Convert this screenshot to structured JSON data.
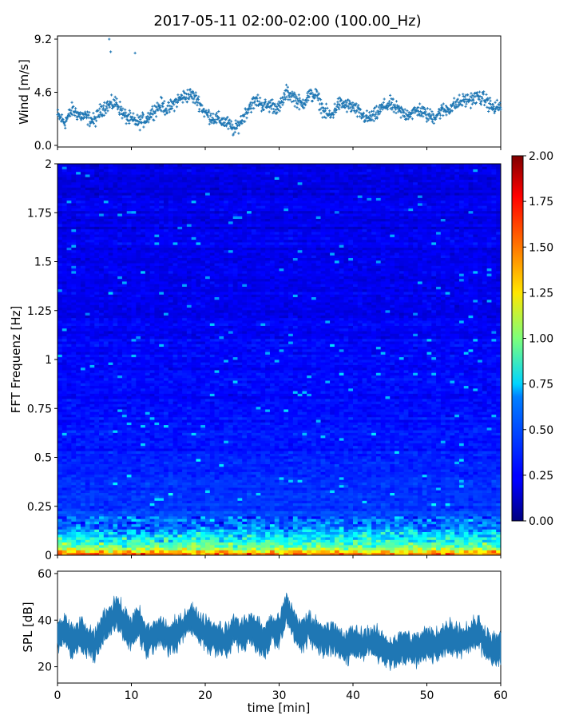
{
  "title": "2017-05-11 02:00-02:00 (100.00_Hz)",
  "chart_data": [
    {
      "type": "scatter",
      "panel": "wind",
      "ylabel": "Wind [m/s]",
      "xlim": [
        0,
        60
      ],
      "ylim": [
        0,
        9.2
      ],
      "yticks": [
        "0.0",
        "4.6",
        "9.2"
      ],
      "marker": "plus",
      "color": "#1f77b4",
      "x": [
        0,
        1,
        2,
        3,
        4,
        5,
        6,
        7,
        8,
        9,
        10,
        11,
        12,
        13,
        14,
        15,
        16,
        17,
        18,
        19,
        20,
        21,
        22,
        23,
        24,
        25,
        26,
        27,
        28,
        29,
        30,
        31,
        32,
        33,
        34,
        35,
        36,
        37,
        38,
        39,
        40,
        41,
        42,
        43,
        44,
        45,
        46,
        47,
        48,
        49,
        50,
        51,
        52,
        53,
        54,
        55,
        56,
        57,
        58,
        59,
        60
      ],
      "y": [
        2.6,
        2.0,
        3.1,
        2.6,
        2.4,
        2.1,
        3.2,
        3.5,
        3.7,
        2.6,
        2.2,
        2.0,
        2.3,
        3.0,
        3.5,
        3.1,
        3.8,
        4.2,
        4.4,
        3.9,
        2.8,
        2.4,
        2.2,
        1.9,
        1.3,
        2.3,
        3.4,
        3.9,
        3.4,
        3.5,
        3.2,
        4.6,
        4.2,
        3.5,
        4.3,
        4.4,
        3.0,
        2.5,
        3.6,
        3.5,
        3.3,
        2.7,
        2.3,
        2.6,
        3.3,
        3.6,
        3.1,
        2.7,
        2.8,
        3.1,
        2.6,
        2.5,
        3.0,
        3.2,
        3.6,
        3.9,
        4.0,
        4.2,
        3.9,
        3.2,
        3.4
      ],
      "outliers": [
        {
          "x": 7.0,
          "y": 9.2
        },
        {
          "x": 7.2,
          "y": 8.1
        },
        {
          "x": 10.5,
          "y": 8.0
        }
      ]
    },
    {
      "type": "heatmap",
      "panel": "spectrogram",
      "ylabel": "FFT Frequenz [Hz]",
      "xlim": [
        0,
        60
      ],
      "ylim": [
        0,
        2
      ],
      "yticks": [
        "0",
        "0.25",
        "0.5",
        "0.75",
        "1",
        "1.25",
        "1.5",
        "1.75",
        "2"
      ],
      "colormap": "jet",
      "colorbar": {
        "min": 0.0,
        "max": 2.0,
        "ticks": [
          "0.00",
          "0.25",
          "0.50",
          "0.75",
          "1.00",
          "1.25",
          "1.50",
          "1.75",
          "2.00"
        ]
      },
      "description_levels": {
        "freq_hz": [
          0.0,
          0.02,
          0.05,
          0.1,
          0.15,
          0.25,
          0.5,
          1.0,
          1.5,
          2.0
        ],
        "typical_value": [
          1.6,
          1.3,
          0.9,
          0.7,
          0.5,
          0.35,
          0.3,
          0.25,
          0.22,
          0.2
        ]
      }
    },
    {
      "type": "area",
      "panel": "spl",
      "ylabel": "SPL [dB]",
      "xlabel": "time [min]",
      "xlim": [
        0,
        60
      ],
      "ylim": [
        13,
        61
      ],
      "yticks": [
        "20",
        "40",
        "60"
      ],
      "xticks": [
        "0",
        "10",
        "20",
        "30",
        "40",
        "50",
        "60"
      ],
      "color": "#1f77b4",
      "x": [
        0,
        1,
        2,
        3,
        4,
        5,
        6,
        7,
        8,
        9,
        10,
        11,
        12,
        13,
        14,
        15,
        16,
        17,
        18,
        19,
        20,
        21,
        22,
        23,
        24,
        25,
        26,
        27,
        28,
        29,
        30,
        31,
        32,
        33,
        34,
        35,
        36,
        37,
        38,
        39,
        40,
        41,
        42,
        43,
        44,
        45,
        46,
        47,
        48,
        49,
        50,
        51,
        52,
        53,
        54,
        55,
        56,
        57,
        58,
        59,
        60
      ],
      "y": [
        33,
        36,
        30,
        34,
        31,
        28,
        36,
        40,
        44,
        38,
        35,
        39,
        31,
        33,
        35,
        32,
        33,
        37,
        41,
        37,
        35,
        33,
        32,
        31,
        36,
        33,
        37,
        34,
        31,
        36,
        35,
        45,
        38,
        33,
        37,
        34,
        32,
        33,
        30,
        28,
        31,
        29,
        31,
        30,
        28,
        26,
        27,
        29,
        27,
        28,
        30,
        29,
        31,
        33,
        32,
        31,
        33,
        35,
        30,
        27,
        28
      ],
      "spread": 5
    }
  ]
}
